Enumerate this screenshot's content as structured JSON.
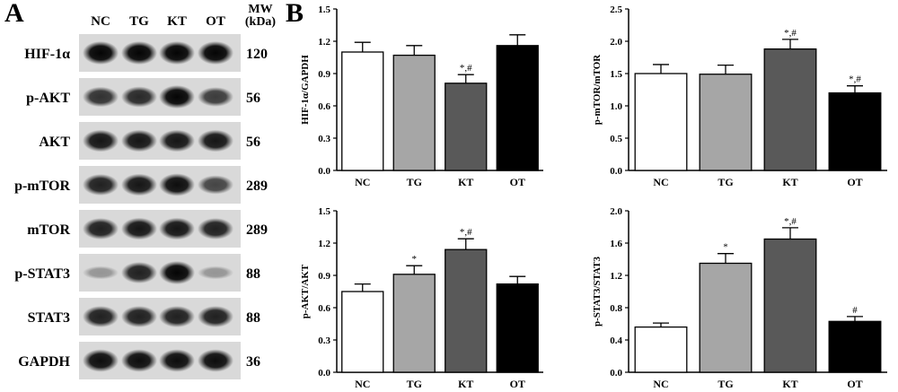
{
  "panel_a_letter": "A",
  "panel_b_letter": "B",
  "blot": {
    "lane_labels": [
      "NC",
      "TG",
      "KT",
      "OT"
    ],
    "mw_header_line1": "MW",
    "mw_header_line2": "(kDa)",
    "rows": [
      {
        "protein": "HIF-1α",
        "mw": "120",
        "intensity": [
          1.0,
          1.0,
          1.0,
          1.0
        ]
      },
      {
        "protein": "p-AKT",
        "mw": "56",
        "intensity": [
          0.75,
          0.8,
          1.0,
          0.7
        ]
      },
      {
        "protein": "AKT",
        "mw": "56",
        "intensity": [
          0.9,
          0.9,
          0.9,
          0.9
        ]
      },
      {
        "protein": "p-mTOR",
        "mw": "289",
        "intensity": [
          0.85,
          0.9,
          0.95,
          0.65
        ]
      },
      {
        "protein": "mTOR",
        "mw": "289",
        "intensity": [
          0.85,
          0.9,
          0.9,
          0.85
        ]
      },
      {
        "protein": "p-STAT3",
        "mw": "88",
        "intensity": [
          0.2,
          0.85,
          1.0,
          0.2
        ]
      },
      {
        "protein": "STAT3",
        "mw": "88",
        "intensity": [
          0.85,
          0.85,
          0.85,
          0.85
        ]
      },
      {
        "protein": "GAPDH",
        "mw": "36",
        "intensity": [
          0.95,
          0.95,
          0.95,
          0.95
        ]
      }
    ]
  },
  "colors": {
    "NC": "#ffffff",
    "TG": "#a6a6a6",
    "KT": "#595959",
    "OT": "#000000"
  },
  "chart_data": [
    {
      "type": "bar",
      "categories": [
        "NC",
        "TG",
        "KT",
        "OT"
      ],
      "values": [
        1.1,
        1.07,
        0.81,
        1.16
      ],
      "errors": [
        0.09,
        0.09,
        0.08,
        0.1
      ],
      "annotations": [
        "",
        "",
        "*,#",
        ""
      ],
      "ylabel": "HIF-1α/GAPDH",
      "ylim": [
        0,
        1.5
      ],
      "yticks": [
        "0.0",
        "0.3",
        "0.6",
        "0.9",
        "1.2",
        "1.5"
      ]
    },
    {
      "type": "bar",
      "categories": [
        "NC",
        "TG",
        "KT",
        "OT"
      ],
      "values": [
        1.5,
        1.49,
        1.88,
        1.2
      ],
      "errors": [
        0.14,
        0.14,
        0.15,
        0.11
      ],
      "annotations": [
        "",
        "",
        "*,#",
        "*,#"
      ],
      "ylabel": "p-mTOR/mTOR",
      "ylim": [
        0,
        2.5
      ],
      "yticks": [
        "0.0",
        "0.5",
        "1.0",
        "1.5",
        "2.0",
        "2.5"
      ]
    },
    {
      "type": "bar",
      "categories": [
        "NC",
        "TG",
        "KT",
        "OT"
      ],
      "values": [
        0.75,
        0.91,
        1.14,
        0.82
      ],
      "errors": [
        0.07,
        0.08,
        0.1,
        0.07
      ],
      "annotations": [
        "",
        "*",
        "*,#",
        ""
      ],
      "ylabel": "p-AKT/AKT",
      "ylim": [
        0,
        1.5
      ],
      "yticks": [
        "0.0",
        "0.3",
        "0.6",
        "0.9",
        "1.2",
        "1.5"
      ]
    },
    {
      "type": "bar",
      "categories": [
        "NC",
        "TG",
        "KT",
        "OT"
      ],
      "values": [
        0.56,
        1.35,
        1.65,
        0.63
      ],
      "errors": [
        0.05,
        0.12,
        0.14,
        0.06
      ],
      "annotations": [
        "",
        "*",
        "*,#",
        "#"
      ],
      "ylabel": "p-STAT3/STAT3",
      "ylim": [
        0,
        2.0
      ],
      "yticks": [
        "0.0",
        "0.4",
        "0.8",
        "1.2",
        "1.6",
        "2.0"
      ]
    }
  ]
}
